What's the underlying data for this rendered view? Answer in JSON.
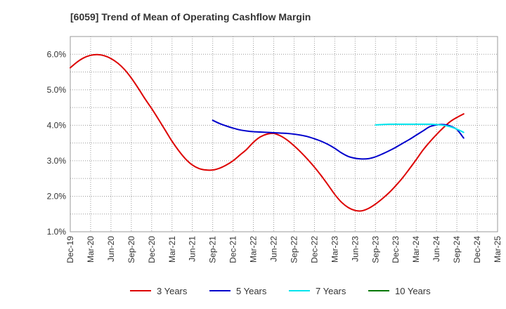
{
  "chart_data": {
    "type": "line",
    "title": "[6059]  Trend of Mean of Operating Cashflow Margin",
    "xlabel": "",
    "ylabel": "",
    "x_ticks": [
      "Dec-19",
      "Mar-20",
      "Jun-20",
      "Sep-20",
      "Dec-20",
      "Mar-21",
      "Jun-21",
      "Sep-21",
      "Dec-21",
      "Mar-22",
      "Jun-22",
      "Sep-22",
      "Dec-22",
      "Mar-23",
      "Jun-23",
      "Sep-23",
      "Dec-23",
      "Mar-24",
      "Jun-24",
      "Sep-24",
      "Dec-24",
      "Mar-25"
    ],
    "y_ticks": [
      "1.0%",
      "2.0%",
      "3.0%",
      "4.0%",
      "5.0%",
      "6.0%"
    ],
    "ylim": [
      1.0,
      6.5
    ],
    "grid": true,
    "legend_position": "bottom",
    "series": [
      {
        "name": "3 Years",
        "color": "#dd0000",
        "values": [
          [
            "Dec-19",
            5.62
          ],
          [
            "Jan-20",
            5.78
          ],
          [
            "Feb-20",
            5.9
          ],
          [
            "Mar-20",
            5.97
          ],
          [
            "Apr-20",
            5.99
          ],
          [
            "May-20",
            5.96
          ],
          [
            "Jun-20",
            5.88
          ],
          [
            "Jul-20",
            5.75
          ],
          [
            "Aug-20",
            5.57
          ],
          [
            "Sep-20",
            5.33
          ],
          [
            "Oct-20",
            5.05
          ],
          [
            "Nov-20",
            4.75
          ],
          [
            "Dec-20",
            4.47
          ],
          [
            "Jan-21",
            4.17
          ],
          [
            "Feb-21",
            3.86
          ],
          [
            "Mar-21",
            3.55
          ],
          [
            "Apr-21",
            3.28
          ],
          [
            "May-21",
            3.05
          ],
          [
            "Jun-21",
            2.88
          ],
          [
            "Jul-21",
            2.78
          ],
          [
            "Aug-21",
            2.74
          ],
          [
            "Sep-21",
            2.74
          ],
          [
            "Oct-21",
            2.79
          ],
          [
            "Nov-21",
            2.88
          ],
          [
            "Dec-21",
            3.0
          ],
          [
            "Jan-22",
            3.16
          ],
          [
            "Feb-22",
            3.32
          ],
          [
            "Mar-22",
            3.52
          ],
          [
            "Apr-22",
            3.67
          ],
          [
            "May-22",
            3.75
          ],
          [
            "Jun-22",
            3.77
          ],
          [
            "Jul-22",
            3.7
          ],
          [
            "Aug-22",
            3.58
          ],
          [
            "Sep-22",
            3.42
          ],
          [
            "Oct-22",
            3.24
          ],
          [
            "Nov-22",
            3.04
          ],
          [
            "Dec-22",
            2.82
          ],
          [
            "Jan-23",
            2.58
          ],
          [
            "Feb-23",
            2.32
          ],
          [
            "Mar-23",
            2.05
          ],
          [
            "Apr-23",
            1.83
          ],
          [
            "May-23",
            1.68
          ],
          [
            "Jun-23",
            1.6
          ],
          [
            "Jul-23",
            1.59
          ],
          [
            "Aug-23",
            1.66
          ],
          [
            "Sep-23",
            1.78
          ],
          [
            "Oct-23",
            1.93
          ],
          [
            "Nov-23",
            2.1
          ],
          [
            "Dec-23",
            2.3
          ],
          [
            "Jan-24",
            2.52
          ],
          [
            "Feb-24",
            2.77
          ],
          [
            "Mar-24",
            3.03
          ],
          [
            "Apr-24",
            3.3
          ],
          [
            "May-24",
            3.53
          ],
          [
            "Jun-24",
            3.74
          ],
          [
            "Jul-24",
            3.93
          ],
          [
            "Aug-24",
            4.1
          ],
          [
            "Sep-24",
            4.22
          ],
          [
            "Oct-24",
            4.32
          ]
        ]
      },
      {
        "name": "5 Years",
        "color": "#0000cc",
        "values": [
          [
            "Sep-21",
            4.14
          ],
          [
            "Oct-21",
            4.05
          ],
          [
            "Nov-21",
            3.98
          ],
          [
            "Dec-21",
            3.92
          ],
          [
            "Jan-22",
            3.87
          ],
          [
            "Feb-22",
            3.84
          ],
          [
            "Mar-22",
            3.82
          ],
          [
            "Apr-22",
            3.81
          ],
          [
            "May-22",
            3.8
          ],
          [
            "Jun-22",
            3.79
          ],
          [
            "Jul-22",
            3.78
          ],
          [
            "Aug-22",
            3.77
          ],
          [
            "Sep-22",
            3.75
          ],
          [
            "Oct-22",
            3.72
          ],
          [
            "Nov-22",
            3.68
          ],
          [
            "Dec-22",
            3.62
          ],
          [
            "Jan-23",
            3.55
          ],
          [
            "Feb-23",
            3.46
          ],
          [
            "Mar-23",
            3.35
          ],
          [
            "Apr-23",
            3.22
          ],
          [
            "May-23",
            3.12
          ],
          [
            "Jun-23",
            3.07
          ],
          [
            "Jul-23",
            3.05
          ],
          [
            "Aug-23",
            3.06
          ],
          [
            "Sep-23",
            3.11
          ],
          [
            "Oct-23",
            3.19
          ],
          [
            "Nov-23",
            3.28
          ],
          [
            "Dec-23",
            3.38
          ],
          [
            "Jan-24",
            3.49
          ],
          [
            "Feb-24",
            3.6
          ],
          [
            "Mar-24",
            3.72
          ],
          [
            "Apr-24",
            3.84
          ],
          [
            "May-24",
            3.96
          ],
          [
            "Jun-24",
            4.01
          ],
          [
            "Jul-24",
            4.02
          ],
          [
            "Aug-24",
            3.98
          ],
          [
            "Sep-24",
            3.88
          ],
          [
            "Oct-24",
            3.64
          ]
        ]
      },
      {
        "name": "7 Years",
        "color": "#00e5ee",
        "values": [
          [
            "Sep-23",
            4.01
          ],
          [
            "Oct-23",
            4.02
          ],
          [
            "Nov-23",
            4.03
          ],
          [
            "Dec-23",
            4.03
          ],
          [
            "Jan-24",
            4.03
          ],
          [
            "Feb-24",
            4.03
          ],
          [
            "Mar-24",
            4.03
          ],
          [
            "Apr-24",
            4.03
          ],
          [
            "May-24",
            4.03
          ],
          [
            "Jun-24",
            4.02
          ],
          [
            "Jul-24",
            4.0
          ],
          [
            "Aug-24",
            3.96
          ],
          [
            "Sep-24",
            3.89
          ],
          [
            "Oct-24",
            3.8
          ]
        ]
      },
      {
        "name": "10 Years",
        "color": "#007700",
        "values": []
      }
    ]
  }
}
